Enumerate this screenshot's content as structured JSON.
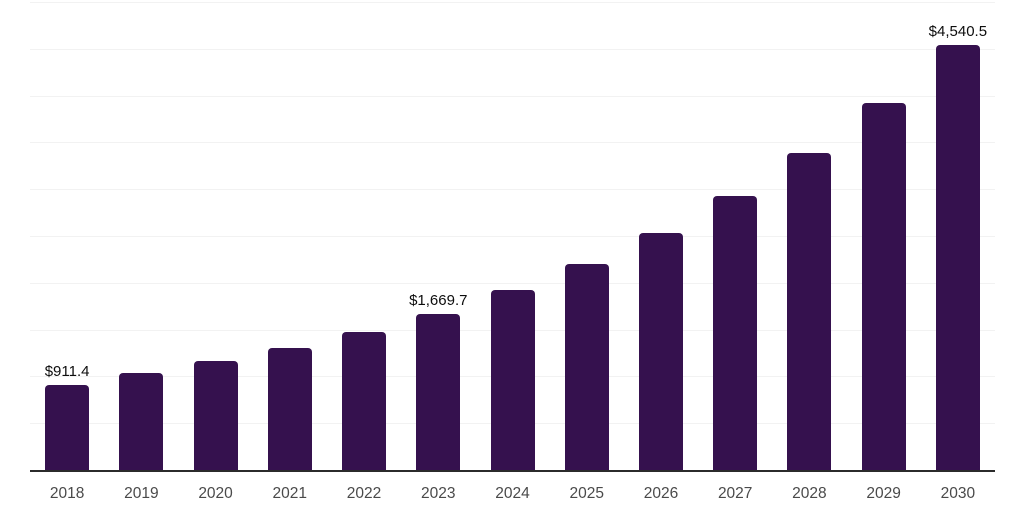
{
  "chart_data": {
    "type": "bar",
    "title": "",
    "xlabel": "",
    "ylabel": "",
    "categories": [
      "2018",
      "2019",
      "2020",
      "2021",
      "2022",
      "2023",
      "2024",
      "2025",
      "2026",
      "2027",
      "2028",
      "2029",
      "2030"
    ],
    "values": [
      911.4,
      1040,
      1160,
      1300,
      1475,
      1669.7,
      1925,
      2205,
      2530,
      2925,
      3385,
      3925,
      4540.5
    ],
    "labeled_points": [
      {
        "category": "2018",
        "label": "$911.4"
      },
      {
        "category": "2023",
        "label": "$1,669.7"
      },
      {
        "category": "2030",
        "label": "$4,540.5"
      }
    ],
    "ylim": [
      0,
      5000
    ],
    "gridline_step": 500,
    "grid": true,
    "legend": false,
    "y_tick_labels_visible": false,
    "colors": {
      "bar": "#35114E",
      "gridline": "#F2F2F2",
      "axis_line": "#2B2B2B",
      "tick_label": "#4A4A4A",
      "data_label": "#0D0D0D",
      "background": "#FFFFFF"
    }
  }
}
